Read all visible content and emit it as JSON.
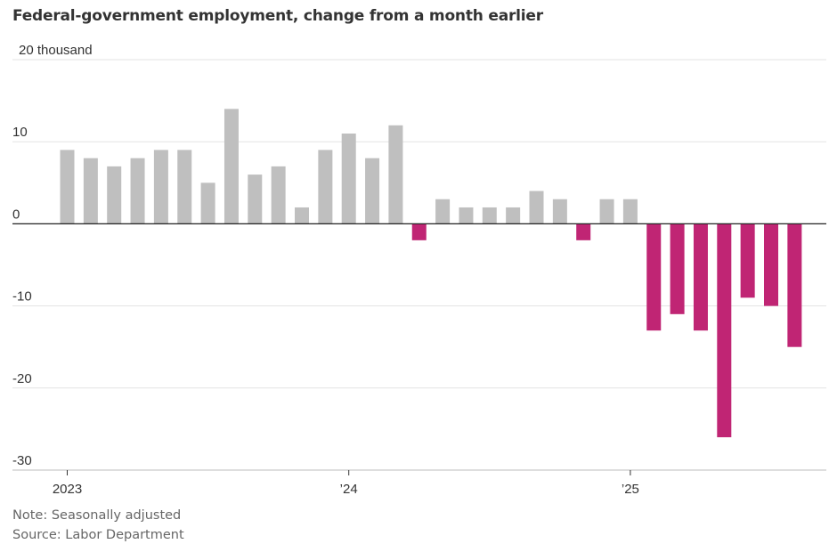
{
  "chart_data": {
    "type": "bar",
    "title": "Federal-government employment, change from a month earlier",
    "ylabel": "",
    "yunit_label": "20 thousand",
    "ylim": [
      -30,
      20
    ],
    "yticks": [
      {
        "value": 20,
        "label": "20 thousand"
      },
      {
        "value": 10,
        "label": "10"
      },
      {
        "value": 0,
        "label": "0"
      },
      {
        "value": -10,
        "label": "-10"
      },
      {
        "value": -20,
        "label": "-20"
      },
      {
        "value": -30,
        "label": "-30"
      }
    ],
    "xticks": [
      {
        "date": "2023-01",
        "label": "2023"
      },
      {
        "date": "2024-01",
        "label": "’24"
      },
      {
        "date": "2025-01",
        "label": "’25"
      }
    ],
    "positive_color": "#bfbfbf",
    "negative_color": "#c02574",
    "grid": true,
    "categories": [
      "2023-01",
      "2023-02",
      "2023-03",
      "2023-04",
      "2023-05",
      "2023-06",
      "2023-07",
      "2023-08",
      "2023-09",
      "2023-10",
      "2023-11",
      "2023-12",
      "2024-01",
      "2024-02",
      "2024-03",
      "2024-04",
      "2024-05",
      "2024-06",
      "2024-07",
      "2024-08",
      "2024-09",
      "2024-10",
      "2024-11",
      "2024-12",
      "2025-01",
      "2025-02",
      "2025-03",
      "2025-04",
      "2025-05",
      "2025-06",
      "2025-07",
      "2025-08"
    ],
    "values": [
      9,
      8,
      7,
      8,
      9,
      9,
      5,
      14,
      6,
      7,
      2,
      9,
      11,
      8,
      12,
      -2,
      3,
      2,
      2,
      2,
      4,
      3,
      -2,
      3,
      3,
      -13,
      -11,
      -13,
      -26,
      -9,
      -10,
      -15
    ]
  },
  "notes": {
    "note": "Note: Seasonally adjusted",
    "source": "Source: Labor Department"
  }
}
